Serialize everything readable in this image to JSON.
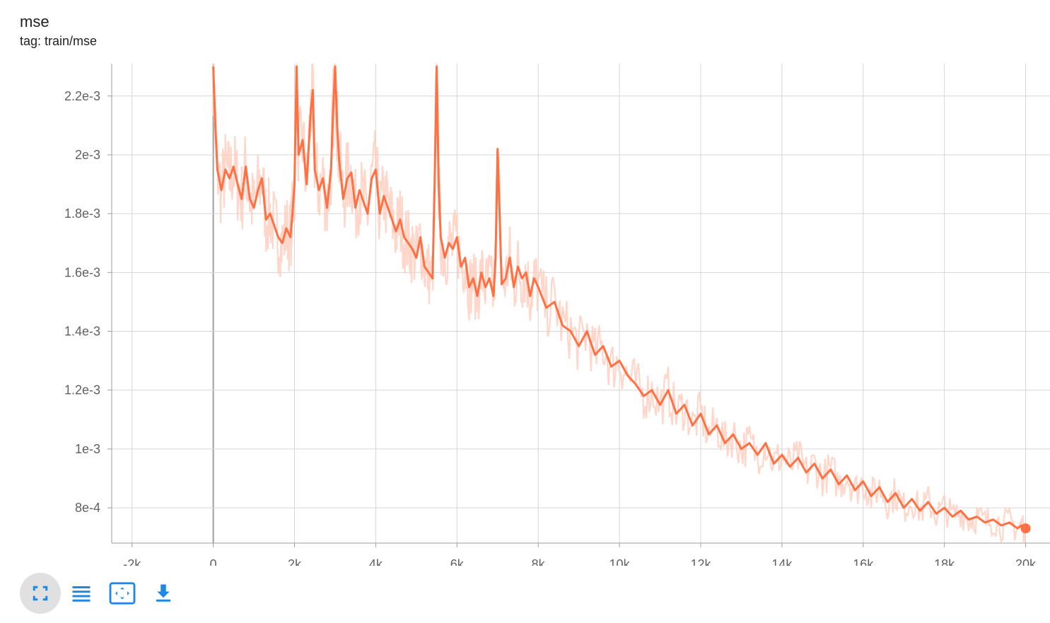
{
  "header": {
    "title": "mse",
    "tag": "tag: train/mse"
  },
  "colors": {
    "smoothed": "#ff7043",
    "raw": "#ffccbc",
    "grid": "#d6d6d6",
    "zero_line": "#9e9e9e",
    "icon": "#1e88e5"
  },
  "toolbar": [
    {
      "name": "fullscreen-icon",
      "active": true
    },
    {
      "name": "toggle-log-scale-icon",
      "active": false
    },
    {
      "name": "fit-domain-icon",
      "active": false
    },
    {
      "name": "download-icon",
      "active": false
    }
  ],
  "chart_data": {
    "type": "line",
    "title": "mse",
    "xlabel": "",
    "ylabel": "",
    "xlim": [
      -2500,
      20600
    ],
    "ylim": [
      0.00068,
      0.00231
    ],
    "x_ticks": [
      -2000,
      0,
      2000,
      4000,
      6000,
      8000,
      10000,
      12000,
      14000,
      16000,
      18000,
      20000
    ],
    "x_tick_labels": [
      "-2k",
      "0",
      "2k",
      "4k",
      "6k",
      "8k",
      "10k",
      "12k",
      "14k",
      "16k",
      "18k",
      "20k"
    ],
    "y_ticks": [
      0.0008,
      0.001,
      0.0012,
      0.0014,
      0.0016,
      0.0018,
      0.002,
      0.0022
    ],
    "y_tick_labels": [
      "8e-4",
      "1e-3",
      "1.2e-3",
      "1.4e-3",
      "1.6e-3",
      "1.8e-3",
      "2e-3",
      "2.2e-3"
    ],
    "grid": true,
    "series": [
      {
        "name": "",
        "style": "smoothed",
        "x": [
          0,
          50,
          100,
          200,
          300,
          400,
          500,
          600,
          700,
          800,
          900,
          1000,
          1100,
          1200,
          1300,
          1400,
          1500,
          1600,
          1700,
          1800,
          1900,
          1950,
          2000,
          2050,
          2100,
          2200,
          2300,
          2400,
          2450,
          2500,
          2600,
          2700,
          2800,
          2900,
          2950,
          3000,
          3050,
          3100,
          3200,
          3300,
          3400,
          3500,
          3600,
          3700,
          3800,
          3900,
          4000,
          4100,
          4200,
          4300,
          4400,
          4500,
          4600,
          4700,
          4800,
          4900,
          5000,
          5100,
          5200,
          5300,
          5400,
          5450,
          5500,
          5550,
          5600,
          5700,
          5800,
          5900,
          6000,
          6100,
          6200,
          6300,
          6400,
          6500,
          6600,
          6700,
          6800,
          6900,
          6950,
          7000,
          7050,
          7100,
          7200,
          7300,
          7400,
          7500,
          7600,
          7700,
          7800,
          7900,
          8000,
          8200,
          8400,
          8600,
          8800,
          9000,
          9200,
          9400,
          9600,
          9800,
          10000,
          10200,
          10400,
          10600,
          10800,
          11000,
          11200,
          11400,
          11600,
          11800,
          12000,
          12200,
          12400,
          12600,
          12800,
          13000,
          13200,
          13400,
          13600,
          13800,
          14000,
          14200,
          14400,
          14600,
          14800,
          15000,
          15200,
          15400,
          15600,
          15800,
          16000,
          16200,
          16400,
          16600,
          16800,
          17000,
          17200,
          17400,
          17600,
          17800,
          18000,
          18200,
          18400,
          18600,
          18800,
          19000,
          19200,
          19400,
          19600,
          19800,
          19900,
          20000
        ],
        "y": [
          0.0023,
          0.0021,
          0.00195,
          0.00188,
          0.00195,
          0.00192,
          0.00196,
          0.0019,
          0.00185,
          0.00196,
          0.00185,
          0.00182,
          0.00188,
          0.00192,
          0.00178,
          0.0018,
          0.00176,
          0.00172,
          0.0017,
          0.00175,
          0.00172,
          0.0018,
          0.0019,
          0.0023,
          0.002,
          0.00205,
          0.0019,
          0.00215,
          0.00222,
          0.00195,
          0.00188,
          0.00192,
          0.00182,
          0.00195,
          0.00215,
          0.0023,
          0.0021,
          0.00198,
          0.00185,
          0.00192,
          0.00194,
          0.00182,
          0.00188,
          0.00184,
          0.0018,
          0.00192,
          0.00195,
          0.0018,
          0.00186,
          0.00182,
          0.00178,
          0.00174,
          0.00178,
          0.00172,
          0.0017,
          0.00168,
          0.00165,
          0.00172,
          0.00162,
          0.0016,
          0.00158,
          0.0019,
          0.0023,
          0.0019,
          0.00172,
          0.00165,
          0.0017,
          0.00168,
          0.00172,
          0.00162,
          0.00165,
          0.00155,
          0.00158,
          0.00152,
          0.0016,
          0.00155,
          0.00158,
          0.00152,
          0.00165,
          0.00202,
          0.0018,
          0.00156,
          0.00158,
          0.00165,
          0.00155,
          0.00162,
          0.00158,
          0.0016,
          0.00152,
          0.00158,
          0.00155,
          0.00148,
          0.0015,
          0.00142,
          0.0014,
          0.00135,
          0.0014,
          0.00132,
          0.00135,
          0.00128,
          0.0013,
          0.00125,
          0.00122,
          0.00118,
          0.0012,
          0.00115,
          0.0012,
          0.00112,
          0.00115,
          0.00108,
          0.00112,
          0.00105,
          0.00108,
          0.00102,
          0.00105,
          0.001,
          0.00102,
          0.00098,
          0.00102,
          0.00095,
          0.00098,
          0.00094,
          0.00097,
          0.00092,
          0.00095,
          0.0009,
          0.00093,
          0.00088,
          0.00091,
          0.00086,
          0.00089,
          0.00084,
          0.00087,
          0.00082,
          0.00085,
          0.0008,
          0.00083,
          0.00079,
          0.00082,
          0.00078,
          0.0008,
          0.00077,
          0.00079,
          0.00076,
          0.00077,
          0.00075,
          0.00076,
          0.00074,
          0.00075,
          0.00073,
          0.00074,
          0.00073
        ]
      }
    ],
    "last_point": {
      "x": 20000,
      "y": 0.00073
    }
  }
}
